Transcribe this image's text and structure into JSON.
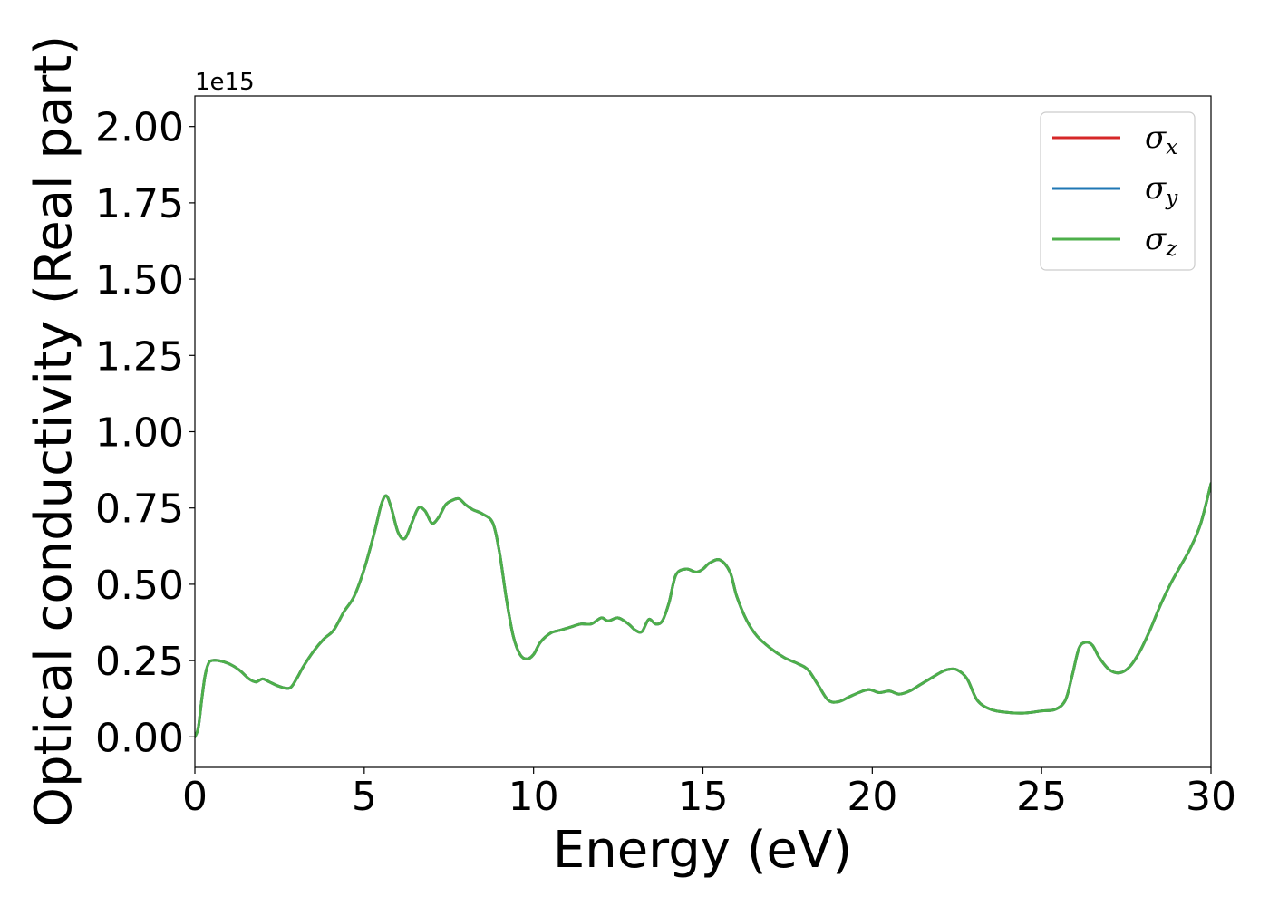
{
  "chart_data": {
    "type": "line",
    "xlabel": "Energy (eV)",
    "ylabel": "Optical conductivity (Real part)",
    "y_offset_label": "1e15",
    "xlim": [
      0,
      30
    ],
    "ylim": [
      -0.1,
      2.1
    ],
    "x_ticks": [
      0,
      5,
      10,
      15,
      20,
      25,
      30
    ],
    "x_tick_labels": [
      "0",
      "5",
      "10",
      "15",
      "20",
      "25",
      "30"
    ],
    "y_ticks": [
      0,
      0.25,
      0.5,
      0.75,
      1.0,
      1.25,
      1.5,
      1.75,
      2.0
    ],
    "y_tick_labels": [
      "0.00",
      "0.25",
      "0.50",
      "0.75",
      "1.00",
      "1.25",
      "1.50",
      "1.75",
      "2.00"
    ],
    "grid": false,
    "legend_position": "top-right",
    "x": [
      0,
      0.1,
      0.2,
      0.3,
      0.4,
      0.5,
      0.7,
      1.0,
      1.3,
      1.6,
      1.8,
      2.0,
      2.2,
      2.5,
      2.8,
      3.0,
      3.2,
      3.5,
      3.8,
      4.1,
      4.4,
      4.7,
      5.0,
      5.3,
      5.5,
      5.65,
      5.8,
      6.0,
      6.2,
      6.4,
      6.6,
      6.8,
      7.0,
      7.2,
      7.4,
      7.6,
      7.8,
      8.0,
      8.2,
      8.5,
      8.8,
      9.0,
      9.2,
      9.4,
      9.6,
      9.8,
      10.0,
      10.2,
      10.5,
      10.8,
      11.1,
      11.4,
      11.7,
      12.0,
      12.2,
      12.5,
      12.8,
      13.0,
      13.2,
      13.4,
      13.6,
      13.8,
      14.0,
      14.2,
      14.5,
      14.8,
      15.0,
      15.2,
      15.5,
      15.8,
      16.0,
      16.3,
      16.6,
      17.0,
      17.4,
      17.8,
      18.1,
      18.4,
      18.7,
      19.0,
      19.3,
      19.6,
      19.9,
      20.2,
      20.5,
      20.8,
      21.1,
      21.4,
      21.7,
      22.0,
      22.2,
      22.5,
      22.8,
      23.1,
      23.5,
      24.0,
      24.5,
      25.0,
      25.4,
      25.7,
      25.9,
      26.1,
      26.3,
      26.5,
      26.7,
      27.0,
      27.3,
      27.6,
      27.9,
      28.2,
      28.5,
      28.8,
      29.1,
      29.4,
      29.7,
      30.0
    ],
    "series": [
      {
        "name": "σx",
        "color": "#d62728",
        "values": [
          0,
          0.03,
          0.12,
          0.2,
          0.24,
          0.25,
          0.25,
          0.24,
          0.22,
          0.19,
          0.18,
          0.19,
          0.18,
          0.165,
          0.16,
          0.19,
          0.23,
          0.28,
          0.32,
          0.35,
          0.41,
          0.46,
          0.55,
          0.67,
          0.76,
          0.79,
          0.75,
          0.67,
          0.65,
          0.7,
          0.75,
          0.74,
          0.7,
          0.72,
          0.76,
          0.775,
          0.78,
          0.76,
          0.745,
          0.73,
          0.7,
          0.6,
          0.45,
          0.33,
          0.27,
          0.255,
          0.27,
          0.31,
          0.34,
          0.35,
          0.36,
          0.37,
          0.37,
          0.39,
          0.38,
          0.39,
          0.37,
          0.35,
          0.345,
          0.385,
          0.37,
          0.38,
          0.44,
          0.53,
          0.55,
          0.54,
          0.55,
          0.57,
          0.58,
          0.54,
          0.46,
          0.38,
          0.33,
          0.29,
          0.26,
          0.24,
          0.22,
          0.17,
          0.12,
          0.115,
          0.13,
          0.145,
          0.155,
          0.145,
          0.15,
          0.14,
          0.15,
          0.17,
          0.19,
          0.21,
          0.22,
          0.22,
          0.19,
          0.12,
          0.09,
          0.08,
          0.078,
          0.085,
          0.09,
          0.12,
          0.2,
          0.29,
          0.31,
          0.3,
          0.26,
          0.22,
          0.21,
          0.23,
          0.28,
          0.35,
          0.43,
          0.5,
          0.56,
          0.62,
          0.7,
          0.83
        ]
      },
      {
        "name": "σy",
        "color": "#1f77b4",
        "values": [
          0,
          0.03,
          0.12,
          0.2,
          0.24,
          0.25,
          0.25,
          0.24,
          0.22,
          0.19,
          0.18,
          0.19,
          0.18,
          0.165,
          0.16,
          0.19,
          0.23,
          0.28,
          0.32,
          0.35,
          0.41,
          0.46,
          0.55,
          0.67,
          0.76,
          0.79,
          0.75,
          0.67,
          0.65,
          0.7,
          0.75,
          0.74,
          0.7,
          0.72,
          0.76,
          0.775,
          0.78,
          0.76,
          0.745,
          0.73,
          0.7,
          0.6,
          0.45,
          0.33,
          0.27,
          0.255,
          0.27,
          0.31,
          0.34,
          0.35,
          0.36,
          0.37,
          0.37,
          0.39,
          0.38,
          0.39,
          0.37,
          0.35,
          0.345,
          0.385,
          0.37,
          0.38,
          0.44,
          0.53,
          0.55,
          0.54,
          0.55,
          0.57,
          0.58,
          0.54,
          0.46,
          0.38,
          0.33,
          0.29,
          0.26,
          0.24,
          0.22,
          0.17,
          0.12,
          0.115,
          0.13,
          0.145,
          0.155,
          0.145,
          0.15,
          0.14,
          0.15,
          0.17,
          0.19,
          0.21,
          0.22,
          0.22,
          0.19,
          0.12,
          0.09,
          0.08,
          0.078,
          0.085,
          0.09,
          0.12,
          0.2,
          0.29,
          0.31,
          0.3,
          0.26,
          0.22,
          0.21,
          0.23,
          0.28,
          0.35,
          0.43,
          0.5,
          0.56,
          0.62,
          0.7,
          0.83
        ]
      },
      {
        "name": "σz",
        "color": "#4daf4a",
        "values": [
          0,
          0.03,
          0.12,
          0.2,
          0.24,
          0.25,
          0.25,
          0.24,
          0.22,
          0.19,
          0.18,
          0.19,
          0.18,
          0.165,
          0.16,
          0.19,
          0.23,
          0.28,
          0.32,
          0.35,
          0.41,
          0.46,
          0.55,
          0.67,
          0.76,
          0.79,
          0.75,
          0.67,
          0.65,
          0.7,
          0.75,
          0.74,
          0.7,
          0.72,
          0.76,
          0.775,
          0.78,
          0.76,
          0.745,
          0.73,
          0.7,
          0.6,
          0.45,
          0.33,
          0.27,
          0.255,
          0.27,
          0.31,
          0.34,
          0.35,
          0.36,
          0.37,
          0.37,
          0.39,
          0.38,
          0.39,
          0.37,
          0.35,
          0.345,
          0.385,
          0.37,
          0.38,
          0.44,
          0.53,
          0.55,
          0.54,
          0.55,
          0.57,
          0.58,
          0.54,
          0.46,
          0.38,
          0.33,
          0.29,
          0.26,
          0.24,
          0.22,
          0.17,
          0.12,
          0.115,
          0.13,
          0.145,
          0.155,
          0.145,
          0.15,
          0.14,
          0.15,
          0.17,
          0.19,
          0.21,
          0.22,
          0.22,
          0.19,
          0.12,
          0.09,
          0.08,
          0.078,
          0.085,
          0.09,
          0.12,
          0.2,
          0.29,
          0.31,
          0.3,
          0.26,
          0.22,
          0.21,
          0.23,
          0.28,
          0.35,
          0.43,
          0.5,
          0.56,
          0.62,
          0.7,
          0.83
        ]
      }
    ],
    "legend": [
      {
        "symbol": "σ",
        "sub": "x",
        "color": "#d62728"
      },
      {
        "symbol": "σ",
        "sub": "y",
        "color": "#1f77b4"
      },
      {
        "symbol": "σ",
        "sub": "z",
        "color": "#4daf4a"
      }
    ]
  }
}
